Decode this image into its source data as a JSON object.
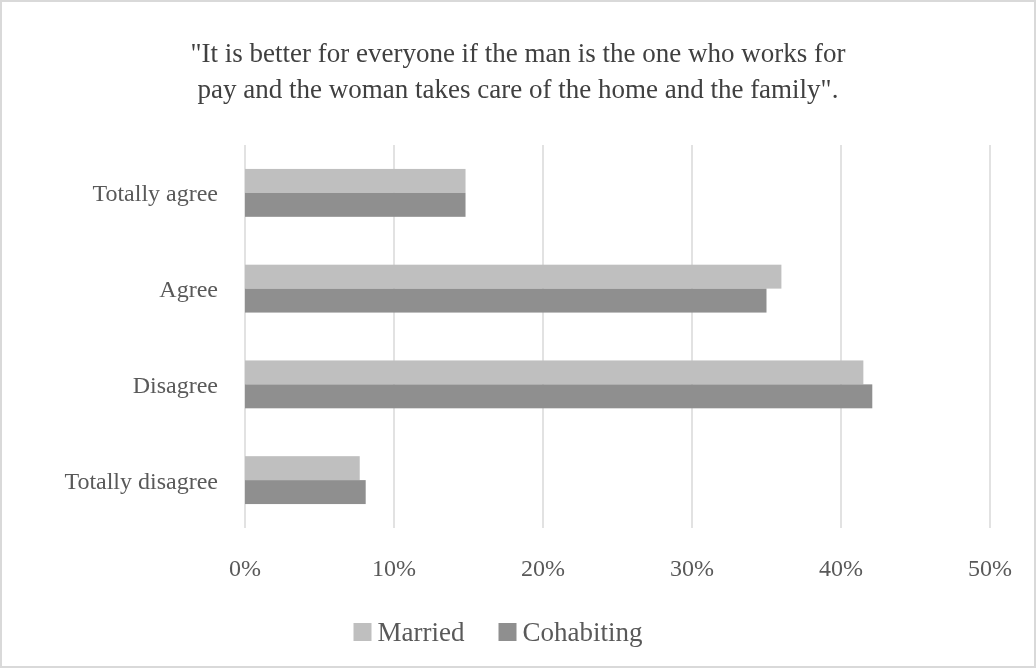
{
  "chart_data": {
    "type": "bar",
    "orientation": "horizontal",
    "title": "\"It is better for everyone if the man is the one who works for pay and the woman takes care of the home and the family\".",
    "categories": [
      "Totally agree",
      "Agree",
      "Disagree",
      "Totally disagree"
    ],
    "series": [
      {
        "name": "Married",
        "color": "#bfbfbf",
        "values": [
          14.8,
          36.0,
          41.5,
          7.7
        ]
      },
      {
        "name": "Cohabiting",
        "color": "#8f8f8f",
        "values": [
          14.8,
          35.0,
          42.1,
          8.1
        ]
      }
    ],
    "xlim": [
      0,
      50
    ],
    "xticks": [
      {
        "value": 0,
        "label": "0%"
      },
      {
        "value": 10,
        "label": "10%"
      },
      {
        "value": 20,
        "label": "20%"
      },
      {
        "value": 30,
        "label": "30%"
      },
      {
        "value": 40,
        "label": "40%"
      },
      {
        "value": 50,
        "label": "50%"
      }
    ],
    "grid": "x",
    "legend": "bottom"
  }
}
